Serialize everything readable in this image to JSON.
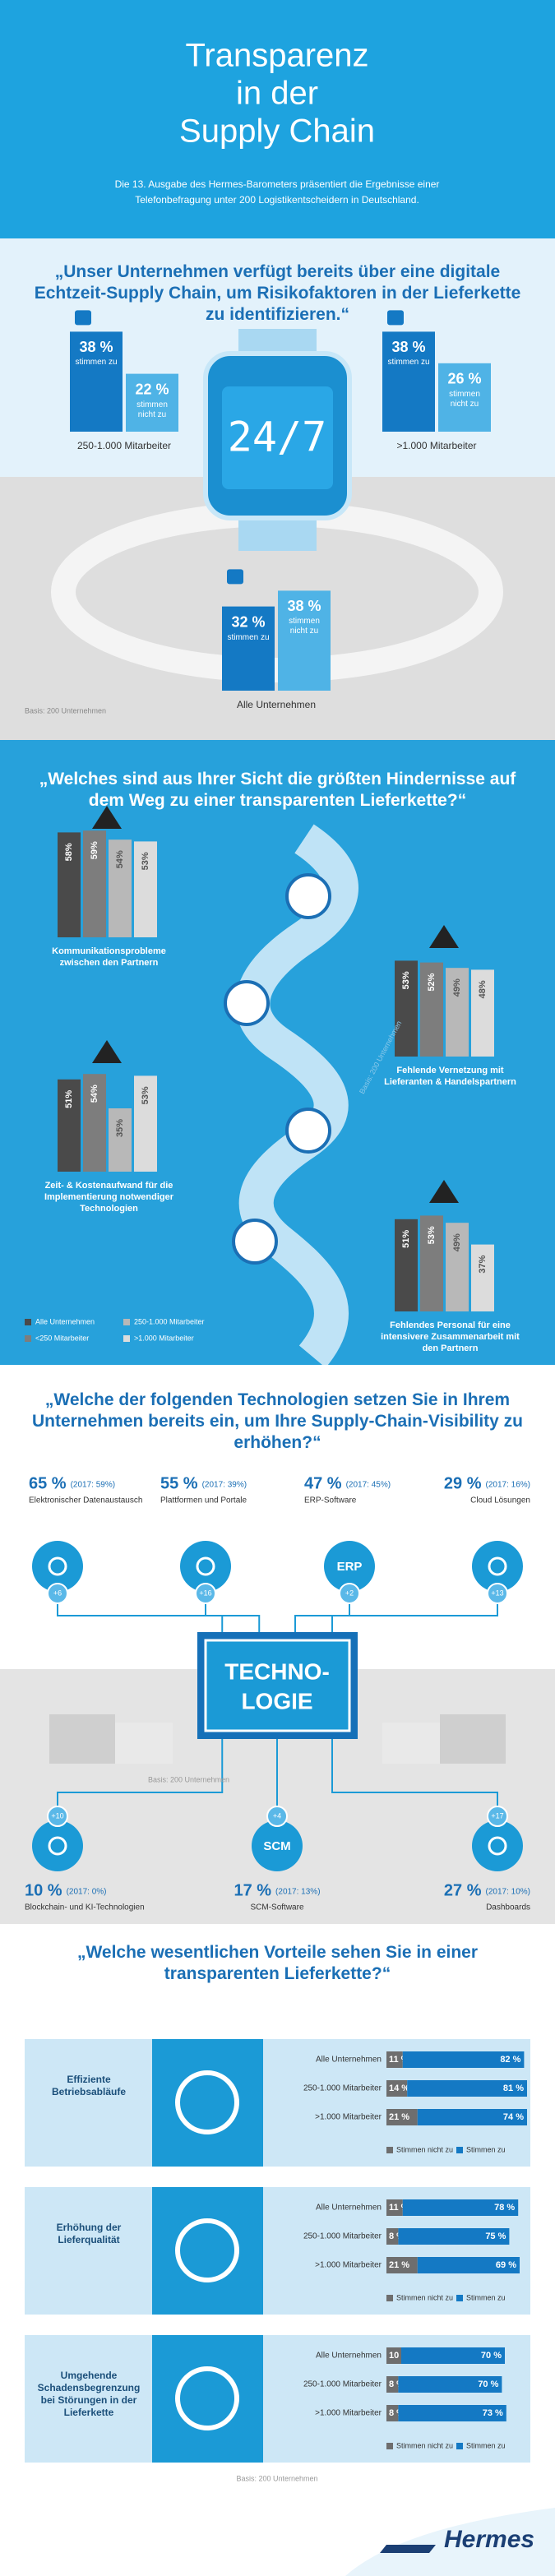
{
  "header": {
    "title": [
      "Transparenz",
      "in der",
      "Supply Chain"
    ],
    "subtitle": [
      "Die 13. Ausgabe des Hermes-Barometers präsentiert die Ergebnisse einer",
      "Telefonbefragung unter 200 Logistikentscheidern in Deutschland."
    ]
  },
  "chart_data": [
    {
      "type": "bar",
      "title": "„Unser Unternehmen verfügt bereits über eine digitale Echtzeit-Supply Chain, um Risikofaktoren in der Lieferkette zu identifizieren.“",
      "categories": [
        "250-1.000 Mitarbeiter",
        ">1.000 Mitarbeiter",
        "Alle Unternehmen"
      ],
      "series": [
        {
          "name": "stimmen zu",
          "color": "#1479c4",
          "values": [
            38,
            38,
            32
          ],
          "value_labels": [
            "38 %",
            "38 %",
            "32 %"
          ]
        },
        {
          "name": "stimmen nicht zu",
          "color": "#4fb3e6",
          "values": [
            22,
            26,
            38
          ],
          "value_labels": [
            "22 %",
            "26 %",
            "38 %"
          ]
        }
      ],
      "annotation": "24/7",
      "note": "Basis: 200 Unternehmen"
    },
    {
      "type": "bar",
      "title": "„Welches sind aus Ihrer Sicht die größten Hindernisse auf dem Weg zu einer transparenten Lieferkette?“",
      "categories": [
        "Kommunikationsprobleme zwischen den Partnern",
        "Fehlende Vernetzung mit Lieferanten & Handelspartnern",
        "Zeit- & Kostenaufwand für die Implementierung notwendiger Technologien",
        "Fehlendes Personal für eine intensivere Zusammenarbeit mit den Partnern"
      ],
      "series": [
        {
          "name": "Alle Unternehmen",
          "color": "#4a4a4a",
          "values": [
            58,
            53,
            51,
            51
          ],
          "value_labels": [
            "58%",
            "53%",
            "51%",
            "51%"
          ]
        },
        {
          "name": "<250 Mitarbeiter",
          "color": "#7d7d7d",
          "values": [
            59,
            52,
            54,
            53
          ],
          "value_labels": [
            "59%",
            "52%",
            "54%",
            "53%"
          ]
        },
        {
          "name": "250-1.000 Mitarbeiter",
          "color": "#b8b8b8",
          "values": [
            54,
            49,
            35,
            49
          ],
          "value_labels": [
            "54%",
            "49%",
            "35%",
            "49%"
          ]
        },
        {
          "name": ">1.000 Mitarbeiter",
          "color": "#dcdcdc",
          "values": [
            53,
            48,
            53,
            37
          ],
          "value_labels": [
            "53%",
            "48%",
            "53%",
            "37%"
          ]
        }
      ],
      "note": "Basis: 200 Unternehmen"
    },
    {
      "type": "bubble",
      "title": "„Welche der folgenden Technologien setzen Sie in Ihrem Unternehmen bereits ein, um Ihre Supply-Chain-Visibility zu erhöhen?“",
      "categories": [
        "Elektronischer Datenaustausch",
        "Plattformen und Portale",
        "ERP-Software",
        "Cloud Lösungen",
        "Blockchain- und KI-Technologien",
        "SCM-Software",
        "Dashboards"
      ],
      "values": [
        65,
        55,
        47,
        29,
        10,
        17,
        27
      ],
      "value_labels": [
        "65 %",
        "55 %",
        "47 %",
        "29 %",
        "10 %",
        "17 %",
        "27 %"
      ],
      "prior_labels": [
        "(2017: 59%)",
        "(2017: 39%)",
        "(2017: 45%)",
        "(2017: 16%)",
        "(2017: 0%)",
        "(2017: 13%)",
        "(2017: 10%)"
      ],
      "change_labels": [
        "+6",
        "+16",
        "+2",
        "+13",
        "+10",
        "+4",
        "+17"
      ],
      "icon_labels": [
        null,
        null,
        "ERP",
        null,
        null,
        "SCM",
        null
      ],
      "color": "#1b9ad6",
      "center_label": [
        "TECHNO-",
        "LOGIE"
      ],
      "note": "Basis: 200 Unternehmen"
    },
    {
      "type": "bar",
      "title": "Effiziente Betriebsabläufe",
      "categories": [
        "Alle Unternehmen",
        "250-1.000 Mitarbeiter",
        ">1.000 Mitarbeiter"
      ],
      "series": [
        {
          "name": "Stimmen nicht zu",
          "color": "#6e6e6e",
          "values": [
            11,
            14,
            21
          ],
          "value_labels": [
            "11 %",
            "14 %",
            "21 %"
          ]
        },
        {
          "name": "Stimmen zu",
          "color": "#1479c4",
          "values": [
            82,
            81,
            74
          ],
          "value_labels": [
            "82 %",
            "81 %",
            "74 %"
          ]
        }
      ]
    },
    {
      "type": "bar",
      "title": "Erhöhung der Lieferqualität",
      "categories": [
        "Alle Unternehmen",
        "250-1.000 Mitarbeiter",
        ">1.000 Mitarbeiter"
      ],
      "series": [
        {
          "name": "Stimmen nicht zu",
          "color": "#6e6e6e",
          "values": [
            11,
            8,
            21
          ],
          "value_labels": [
            "11 %",
            "8 %",
            "21 %"
          ]
        },
        {
          "name": "Stimmen zu",
          "color": "#1479c4",
          "values": [
            78,
            75,
            69
          ],
          "value_labels": [
            "78 %",
            "75 %",
            "69 %"
          ]
        }
      ]
    },
    {
      "type": "bar",
      "title": "Umgehende Schadensbegrenzung bei Störungen in der Lieferkette",
      "categories": [
        "Alle Unternehmen",
        "250-1.000 Mitarbeiter",
        ">1.000 Mitarbeiter"
      ],
      "series": [
        {
          "name": "Stimmen nicht zu",
          "color": "#6e6e6e",
          "values": [
            10,
            8,
            8
          ],
          "value_labels": [
            "10 %",
            "8 %",
            "8 %"
          ]
        },
        {
          "name": "Stimmen zu",
          "color": "#1479c4",
          "values": [
            70,
            70,
            73
          ],
          "value_labels": [
            "70 %",
            "70 %",
            "73 %"
          ]
        }
      ]
    }
  ],
  "section_4": {
    "title": "„Welche wesentlichen Vorteile sehen Sie in einer transparenten Lieferkette?“",
    "note": "Basis: 200 Unternehmen"
  },
  "footer": {
    "logo": "Hermes"
  }
}
